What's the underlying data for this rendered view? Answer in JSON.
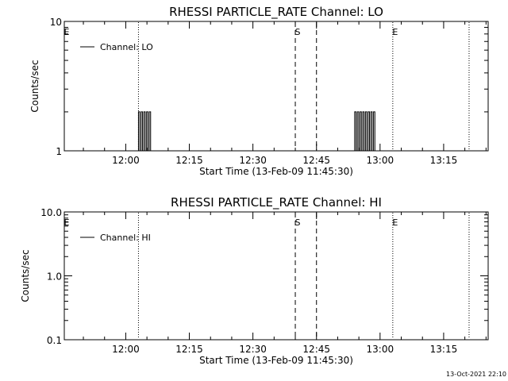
{
  "chart_data": [
    {
      "type": "line",
      "title": "RHESSI PARTICLE_RATE Channel: LO",
      "xlabel": "Start Time (13-Feb-09 11:45:30)",
      "ylabel": "Counts/sec",
      "y_scale": "log",
      "ylim": [
        1,
        10
      ],
      "y_ticks": [
        "1",
        "10"
      ],
      "x_range_minutes_after_start": [
        0,
        100
      ],
      "x_ticks": [
        "12:00",
        "12:15",
        "12:30",
        "12:45",
        "13:00",
        "13:15"
      ],
      "grid": false,
      "legend": {
        "placement": "top-left",
        "entries": [
          "Channel: LO"
        ]
      },
      "annotations": [
        {
          "label": "E",
          "time": "11:45:30",
          "style": "dotted"
        },
        {
          "label": "",
          "time": "12:03",
          "style": "dotted"
        },
        {
          "label": "S",
          "time": "12:40",
          "style": "dashed"
        },
        {
          "label": "",
          "time": "12:45",
          "style": "dashed"
        },
        {
          "label": "E",
          "time": "13:03",
          "style": "dotted"
        },
        {
          "label": "",
          "time": "13:21",
          "style": "dotted"
        }
      ],
      "series": [
        {
          "name": "Channel: LO",
          "bursts": [
            {
              "start": "12:03",
              "end": "12:06",
              "level": 2
            },
            {
              "start": "12:54",
              "end": "12:59",
              "level": 2
            }
          ]
        }
      ]
    },
    {
      "type": "line",
      "title": "RHESSI PARTICLE_RATE Channel: HI",
      "xlabel": "Start Time (13-Feb-09 11:45:30)",
      "ylabel": "Counts/sec",
      "y_scale": "log",
      "ylim": [
        0.1,
        10
      ],
      "y_ticks": [
        "0.1",
        "1.0",
        "10.0"
      ],
      "x_range_minutes_after_start": [
        0,
        100
      ],
      "x_ticks": [
        "12:00",
        "12:15",
        "12:30",
        "12:45",
        "13:00",
        "13:15"
      ],
      "grid": false,
      "legend": {
        "placement": "top-left",
        "entries": [
          "Channel: HI"
        ]
      },
      "annotations": [
        {
          "label": "E",
          "time": "11:45:30",
          "style": "dotted"
        },
        {
          "label": "",
          "time": "12:03",
          "style": "dotted"
        },
        {
          "label": "S",
          "time": "12:40",
          "style": "dashed"
        },
        {
          "label": "",
          "time": "12:45",
          "style": "dashed"
        },
        {
          "label": "E",
          "time": "13:03",
          "style": "dotted"
        },
        {
          "label": "",
          "time": "13:21",
          "style": "dotted"
        }
      ],
      "series": [
        {
          "name": "Channel: HI",
          "bursts": []
        }
      ]
    }
  ],
  "footer": {
    "timestamp": "13-Oct-2021 22:10"
  }
}
